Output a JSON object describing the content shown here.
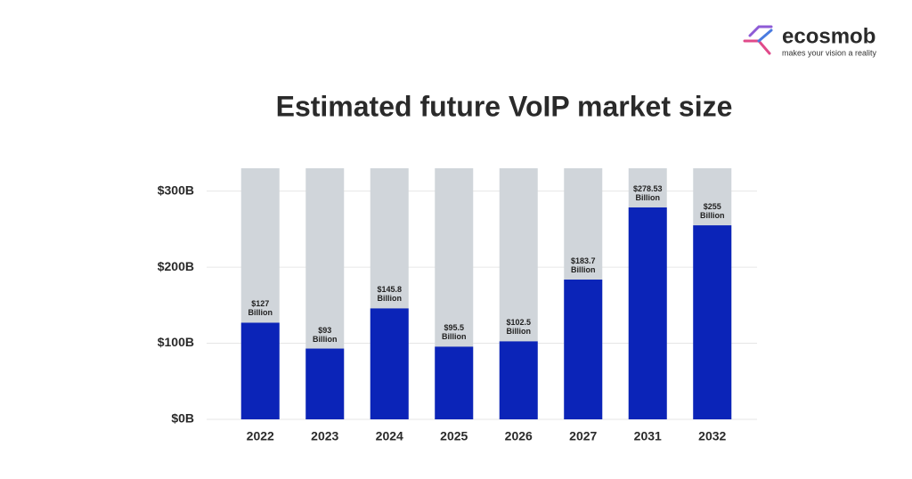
{
  "logo": {
    "name": "ecosmob",
    "tagline": "makes your vision a reality"
  },
  "chart_data": {
    "type": "bar",
    "title": "Estimated future VoIP market size",
    "categories": [
      "2022",
      "2023",
      "2024",
      "2025",
      "2026",
      "2027",
      "2031",
      "2032"
    ],
    "values": [
      127,
      93,
      145.8,
      95.5,
      102.5,
      183.7,
      278.53,
      255
    ],
    "value_labels": [
      "$127 Billion",
      "$93 Billion",
      "$145.8 Billion",
      "$95.5 Billion",
      "$102.5 Billion",
      "$183.7 Billion",
      "$278.53 Billion",
      "$255 Billion"
    ],
    "color": "#0b24b8",
    "background_color": "#d0d5da",
    "ylim": [
      0,
      330
    ],
    "yticks": [
      {
        "value": 0,
        "label": "$0B"
      },
      {
        "value": 100,
        "label": "$100B"
      },
      {
        "value": 200,
        "label": "$200B"
      },
      {
        "value": 300,
        "label": "$300B"
      }
    ],
    "grid": true
  }
}
